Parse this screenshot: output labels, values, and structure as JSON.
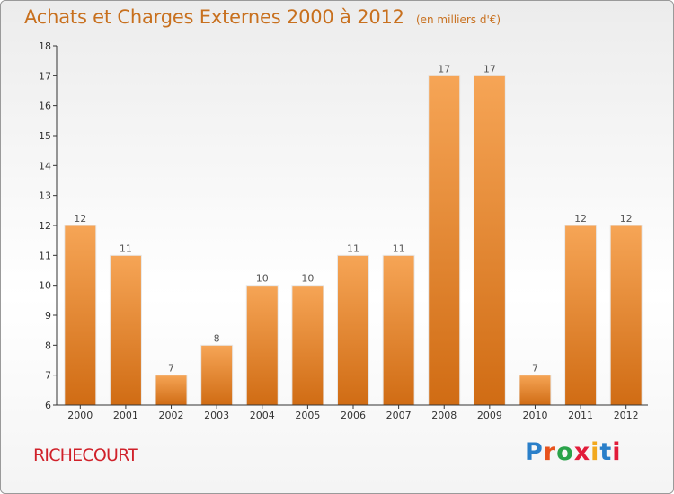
{
  "header": {
    "title": "Achats et Charges Externes 2000 à 2012",
    "subtitle": "(en milliers d'€)"
  },
  "footer": {
    "commune": "RICHECOURT",
    "logo_text": "Proxiti",
    "logo_colors": [
      "#2a7fc9",
      "#e8531c",
      "#2aa34a",
      "#e21c3a",
      "#f2a81d",
      "#2a7fc9",
      "#e21c3a"
    ]
  },
  "chart_data": {
    "type": "bar",
    "title": "Achats et Charges Externes 2000 à 2012",
    "subtitle": "(en milliers d'€)",
    "xlabel": "",
    "ylabel": "",
    "categories": [
      "2000",
      "2001",
      "2002",
      "2003",
      "2004",
      "2005",
      "2006",
      "2007",
      "2008",
      "2009",
      "2010",
      "2011",
      "2012"
    ],
    "values": [
      12,
      11,
      7,
      8,
      10,
      10,
      11,
      11,
      17,
      17,
      7,
      12,
      12
    ],
    "ylim": [
      6,
      18
    ],
    "yticks": [
      6,
      7,
      8,
      9,
      10,
      11,
      12,
      13,
      14,
      15,
      16,
      17,
      18
    ],
    "grid": false,
    "colors": {
      "bar_top": "#f6a556",
      "bar_bottom": "#d06c14",
      "axis": "#333333",
      "title": "#c8701e"
    }
  }
}
